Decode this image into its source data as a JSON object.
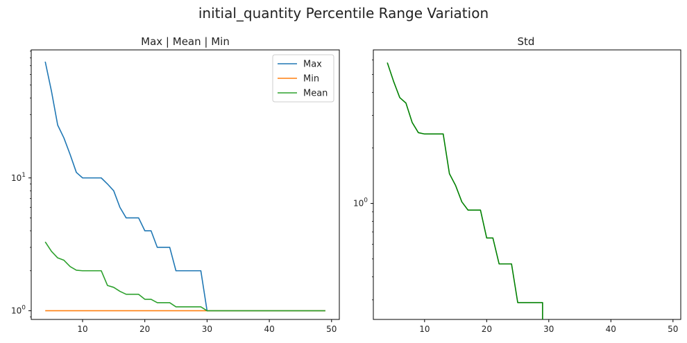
{
  "figure": {
    "title": "initial_quantity Percentile Range Variation"
  },
  "chart_data": [
    {
      "type": "line",
      "title": "Max | Mean | Min",
      "xlabel": "",
      "ylabel": "",
      "y_scale": "log",
      "xlim": [
        1.75,
        51.25
      ],
      "ylim": [
        0.86,
        92
      ],
      "x_ticks": [
        10,
        20,
        30,
        40,
        50
      ],
      "y_ticks": [
        {
          "value": 1,
          "label": "10^0"
        },
        {
          "value": 10,
          "label": "10^1"
        }
      ],
      "legend": "top-right",
      "x": [
        4,
        5,
        6,
        7,
        8,
        9,
        10,
        11,
        12,
        13,
        14,
        15,
        16,
        17,
        18,
        19,
        20,
        21,
        22,
        23,
        24,
        25,
        26,
        27,
        28,
        29,
        30,
        31,
        32,
        33,
        34,
        35,
        36,
        37,
        38,
        39,
        40,
        41,
        42,
        43,
        44,
        45,
        46,
        47,
        48,
        49
      ],
      "series": [
        {
          "name": "Max",
          "color": "#1f77b4",
          "values": [
            75,
            45,
            25,
            20,
            15,
            11,
            10,
            10,
            10,
            10,
            9,
            8,
            6,
            5,
            5,
            5,
            4,
            4,
            3,
            3,
            3,
            2,
            2,
            2,
            2,
            2,
            1,
            1,
            1,
            1,
            1,
            1,
            1,
            1,
            1,
            1,
            1,
            1,
            1,
            1,
            1,
            1,
            1,
            1,
            1,
            1
          ]
        },
        {
          "name": "Min",
          "color": "#ff7f0e",
          "values": [
            1,
            1,
            1,
            1,
            1,
            1,
            1,
            1,
            1,
            1,
            1,
            1,
            1,
            1,
            1,
            1,
            1,
            1,
            1,
            1,
            1,
            1,
            1,
            1,
            1,
            1,
            1,
            1,
            1,
            1,
            1,
            1,
            1,
            1,
            1,
            1,
            1,
            1,
            1,
            1,
            1,
            1,
            1,
            1,
            1,
            1
          ]
        },
        {
          "name": "Mean",
          "color": "#2ca02c",
          "values": [
            3.3,
            2.8,
            2.5,
            2.4,
            2.15,
            2.02,
            2,
            2,
            2,
            2,
            1.55,
            1.5,
            1.4,
            1.33,
            1.33,
            1.33,
            1.22,
            1.22,
            1.15,
            1.15,
            1.15,
            1.07,
            1.07,
            1.07,
            1.07,
            1.07,
            1,
            1,
            1,
            1,
            1,
            1,
            1,
            1,
            1,
            1,
            1,
            1,
            1,
            1,
            1,
            1,
            1,
            1,
            1,
            1
          ]
        }
      ]
    },
    {
      "type": "line",
      "title": "Std",
      "xlabel": "",
      "ylabel": "",
      "y_scale": "log",
      "xlim": [
        1.75,
        51.25
      ],
      "ylim": [
        0.235,
        6.8
      ],
      "x_ticks": [
        10,
        20,
        30,
        40,
        50
      ],
      "y_ticks": [
        {
          "value": 1,
          "label": "10^0"
        }
      ],
      "legend": "none",
      "x": [
        4,
        5,
        6,
        7,
        8,
        9,
        10,
        11,
        12,
        13,
        14,
        15,
        16,
        17,
        18,
        19,
        20,
        21,
        22,
        23,
        24,
        25,
        26,
        27,
        28,
        29
      ],
      "series": [
        {
          "color": "#008000",
          "values": [
            5.8,
            4.6,
            3.75,
            3.5,
            2.75,
            2.42,
            2.38,
            2.38,
            2.38,
            2.38,
            1.45,
            1.25,
            1.02,
            0.92,
            0.92,
            0.92,
            0.65,
            0.65,
            0.47,
            0.47,
            0.47,
            0.29,
            0.29,
            0.29,
            0.29,
            0.29
          ]
        }
      ],
      "series_end": {
        "x": 29,
        "to_bottom": true
      }
    }
  ]
}
